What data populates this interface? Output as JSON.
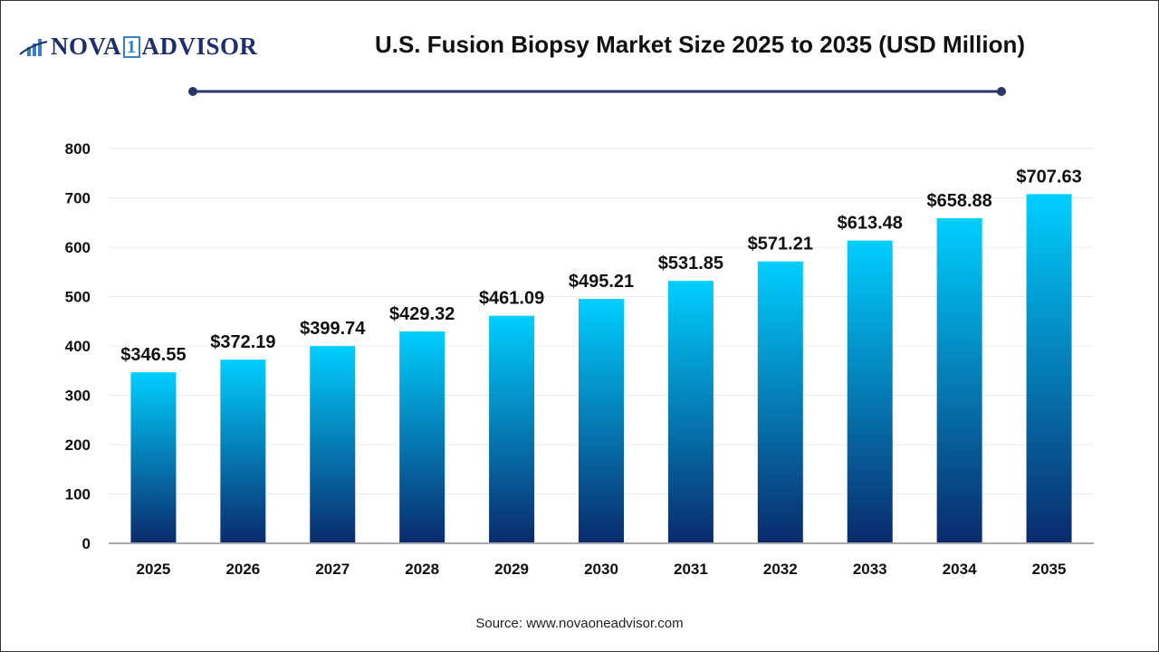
{
  "logo": {
    "text_left": "NOVA",
    "text_mid": "1",
    "text_right": "ADVISOR"
  },
  "title": "U.S. Fusion Biopsy Market Size 2025 to 2035  (USD Million)",
  "source": "Source: www.novaoneadvisor.com",
  "colors": {
    "bar_top": "#00CFFF",
    "bar_bottom": "#0A2A6B",
    "title_line": "#2b3566"
  },
  "chart_data": {
    "type": "bar",
    "title": "U.S. Fusion Biopsy Market Size 2025 to 2035  (USD Million)",
    "categories": [
      "2025",
      "2026",
      "2027",
      "2028",
      "2029",
      "2030",
      "2031",
      "2032",
      "2033",
      "2034",
      "2035"
    ],
    "values": [
      346.55,
      372.19,
      399.74,
      429.32,
      461.09,
      495.21,
      531.85,
      571.21,
      613.48,
      658.88,
      707.63
    ],
    "data_labels": [
      "$346.55",
      "$372.19",
      "$399.74",
      "$429.32",
      "$461.09",
      "$495.21",
      "$531.85",
      "$571.21",
      "$613.48",
      "$658.88",
      "$707.63"
    ],
    "yticks": [
      "0",
      "100",
      "200",
      "300",
      "400",
      "500",
      "600",
      "700",
      "800"
    ],
    "ylim": [
      0,
      800
    ],
    "grid": true,
    "xlabel": "",
    "ylabel": ""
  }
}
